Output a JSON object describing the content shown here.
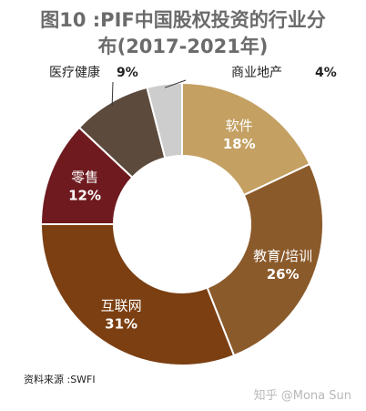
{
  "title": {
    "line1": "图10 :PIF中国股权投资的行业分",
    "line2": "布(2017-2021年)"
  },
  "chart_data": {
    "type": "pie",
    "donut": true,
    "segments": [
      {
        "name": "软件",
        "value": 18,
        "label": "18%",
        "color": "#c4a062",
        "text_color": "#ffffff"
      },
      {
        "name": "教育/培训",
        "value": 26,
        "label": "26%",
        "color": "#8b5a2b",
        "text_color": "#ffffff"
      },
      {
        "name": "互联网",
        "value": 31,
        "label": "31%",
        "color": "#7b3f12",
        "text_color": "#ffffff"
      },
      {
        "name": "零售",
        "value": 12,
        "label": "12%",
        "color": "#6e1a1f",
        "text_color": "#ffffff"
      },
      {
        "name": "医疗健康",
        "value": 9,
        "label": "9%",
        "color": "#5c4a3d",
        "text_color": "#222222"
      },
      {
        "name": "商业地产",
        "value": 4,
        "label": "4%",
        "color": "#cdcdcd",
        "text_color": "#222222"
      }
    ]
  },
  "source": "资料来源 :SWFI",
  "watermark": "知乎 @Mona Sun"
}
